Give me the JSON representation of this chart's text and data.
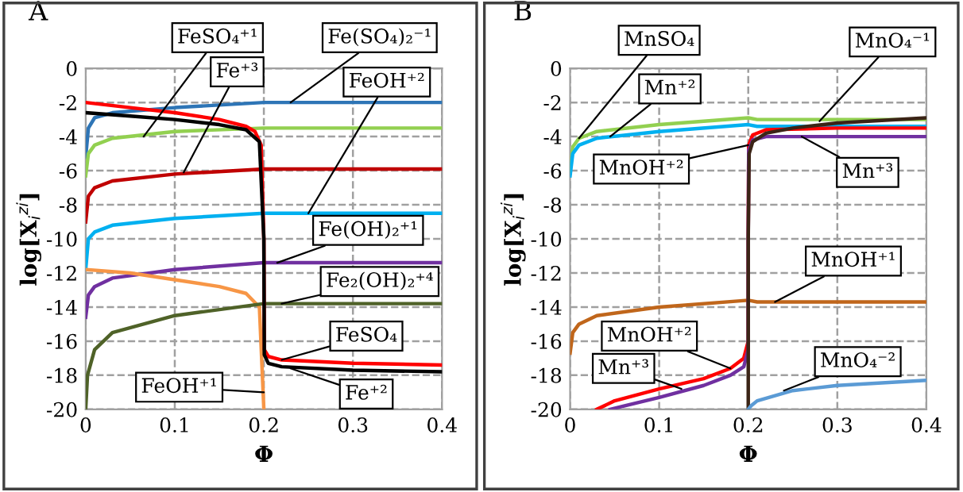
{
  "chart_data": [
    {
      "type": "line",
      "title": "A",
      "xlabel": "Φ",
      "ylabel": "log[X$_{i}$$^{zi}$]",
      "xlim": [
        0,
        0.4
      ],
      "ylim": [
        -20,
        0
      ],
      "xticks": [
        0,
        0.1,
        0.2,
        0.3,
        0.4
      ],
      "yticks": [
        -20,
        -18,
        -16,
        -14,
        -12,
        -10,
        -8,
        -6,
        -4,
        -2,
        0
      ],
      "grid": true,
      "marker": "none",
      "line_style": "solid",
      "series": [
        {
          "color": "#2e75b6",
          "x": [
            0,
            0.003,
            0.01,
            0.03,
            0.1,
            0.2,
            0.4
          ],
          "values": [
            -5.2,
            -3.5,
            -2.9,
            -2.6,
            -2.3,
            -2.0,
            -2.0
          ]
        },
        {
          "color": "#92d050",
          "x": [
            0,
            0.003,
            0.01,
            0.03,
            0.1,
            0.2,
            0.4
          ],
          "values": [
            -6.3,
            -5.0,
            -4.5,
            -4.1,
            -3.7,
            -3.5,
            -3.5
          ]
        },
        {
          "color": "#c00000",
          "x": [
            0,
            0.003,
            0.01,
            0.03,
            0.1,
            0.2,
            0.4
          ],
          "values": [
            -9.0,
            -7.5,
            -7.0,
            -6.6,
            -6.2,
            -5.9,
            -5.9
          ]
        },
        {
          "color": "#00b0f0",
          "x": [
            0,
            0.003,
            0.01,
            0.03,
            0.1,
            0.2,
            0.4
          ],
          "values": [
            -11.8,
            -10.0,
            -9.6,
            -9.2,
            -8.8,
            -8.5,
            -8.5
          ]
        },
        {
          "color": "#7030a0",
          "x": [
            0,
            0.003,
            0.01,
            0.03,
            0.1,
            0.2,
            0.4
          ],
          "values": [
            -14.6,
            -13.3,
            -12.8,
            -12.3,
            -11.8,
            -11.4,
            -11.4
          ]
        },
        {
          "color": "#f79646",
          "x": [
            0,
            0.05,
            0.1,
            0.15,
            0.18,
            0.195,
            0.2
          ],
          "values": [
            -11.8,
            -12.0,
            -12.4,
            -12.8,
            -13.2,
            -14.0,
            -20
          ]
        },
        {
          "color": "#4f6228",
          "x": [
            0,
            0.002,
            0.01,
            0.03,
            0.1,
            0.2,
            0.4
          ],
          "values": [
            -20,
            -18,
            -16.5,
            -15.5,
            -14.5,
            -13.8,
            -13.8
          ]
        },
        {
          "color": "#ff0000",
          "x": [
            0,
            0.05,
            0.1,
            0.15,
            0.18,
            0.19,
            0.197,
            0.2,
            0.2005,
            0.205,
            0.22,
            0.3,
            0.4
          ],
          "values": [
            -2.0,
            -2.3,
            -2.6,
            -3.0,
            -3.4,
            -3.7,
            -4.5,
            -10,
            -16.5,
            -16.9,
            -17.1,
            -17.3,
            -17.4
          ]
        },
        {
          "color": "#000000",
          "x": [
            0,
            0.05,
            0.1,
            0.15,
            0.18,
            0.195,
            0.2,
            0.2005,
            0.205,
            0.22,
            0.3,
            0.4
          ],
          "values": [
            -2.6,
            -2.8,
            -3.0,
            -3.3,
            -3.6,
            -4.3,
            -10,
            -16.8,
            -17.3,
            -17.5,
            -17.7,
            -17.8
          ]
        }
      ],
      "annotations": [
        {
          "text": "FeSO₄⁺¹",
          "x": 0.065,
          "y": -4.0
        },
        {
          "text": "Fe(SO₄)₂⁻¹",
          "x": 0.23,
          "y": -2.0
        },
        {
          "text": "Fe⁺³",
          "x": 0.11,
          "y": -6.1
        },
        {
          "text": "FeOH⁺²",
          "x": 0.25,
          "y": -8.5
        },
        {
          "text": "Fe(OH)₂⁺¹",
          "x": 0.215,
          "y": -11.4
        },
        {
          "text": "Fe₂(OH)₂⁺⁴",
          "x": 0.22,
          "y": -13.8
        },
        {
          "text": "FeSO₄",
          "x": 0.22,
          "y": -17.1
        },
        {
          "text": "Fe⁺²",
          "x": 0.23,
          "y": -17.6
        },
        {
          "text": "FeOH⁺¹",
          "x": 0.2,
          "y": -19.0
        }
      ]
    },
    {
      "type": "line",
      "title": "B",
      "xlabel": "Φ",
      "ylabel": "log[X$_{i}$$^{zi}$]",
      "xlim": [
        0,
        0.4
      ],
      "ylim": [
        -20,
        0
      ],
      "xticks": [
        0,
        0.1,
        0.2,
        0.3,
        0.4
      ],
      "yticks": [
        -20,
        -18,
        -16,
        -14,
        -12,
        -10,
        -8,
        -6,
        -4,
        -2,
        0
      ],
      "grid": true,
      "marker": "none",
      "line_style": "solid",
      "series": [
        {
          "color": "#92d050",
          "x": [
            0,
            0.003,
            0.01,
            0.03,
            0.1,
            0.2,
            0.21,
            0.3,
            0.4
          ],
          "values": [
            -6.0,
            -4.6,
            -4.1,
            -3.7,
            -3.3,
            -2.9,
            -3.0,
            -3.0,
            -3.0
          ]
        },
        {
          "color": "#00b0f0",
          "x": [
            0,
            0.003,
            0.01,
            0.03,
            0.1,
            0.2,
            0.21,
            0.3,
            0.4
          ],
          "values": [
            -6.3,
            -5.0,
            -4.5,
            -4.1,
            -3.7,
            -3.3,
            -3.4,
            -3.4,
            -3.4
          ]
        },
        {
          "color": "#c0661b",
          "x": [
            0,
            0.003,
            0.01,
            0.03,
            0.1,
            0.2,
            0.21,
            0.4
          ],
          "values": [
            -16.7,
            -15.5,
            -15.0,
            -14.5,
            -14.0,
            -13.6,
            -13.7,
            -13.7
          ]
        },
        {
          "color": "#ff0000",
          "x": [
            0.03,
            0.05,
            0.1,
            0.15,
            0.18,
            0.195,
            0.2,
            0.2,
            0.2005,
            0.205,
            0.22,
            0.3,
            0.4
          ],
          "values": [
            -20,
            -19.5,
            -18.8,
            -18.2,
            -17.6,
            -17.0,
            -16.0,
            -10,
            -4.5,
            -3.9,
            -3.6,
            -3.5,
            -3.5
          ]
        },
        {
          "color": "#7030a0",
          "x": [
            0.045,
            0.1,
            0.15,
            0.18,
            0.195,
            0.2,
            0.2,
            0.2005,
            0.205,
            0.22,
            0.4
          ],
          "values": [
            -20,
            -19.3,
            -18.6,
            -18.0,
            -17.5,
            -16.5,
            -10,
            -4.8,
            -4.2,
            -4.0,
            -4.0
          ]
        },
        {
          "color": "#3b2416",
          "x": [
            0.2,
            0.2,
            0.201,
            0.205,
            0.22,
            0.25,
            0.3,
            0.4
          ],
          "values": [
            -20,
            -10,
            -5.0,
            -4.3,
            -3.8,
            -3.5,
            -3.2,
            -2.9
          ]
        },
        {
          "color": "#5b9bd5",
          "x": [
            0.2,
            0.203,
            0.21,
            0.25,
            0.3,
            0.4
          ],
          "values": [
            -20,
            -19.8,
            -19.5,
            -18.9,
            -18.6,
            -18.3
          ]
        }
      ],
      "annotations": [
        {
          "text": "MnSO₄",
          "x": 0.01,
          "y": -4.1
        },
        {
          "text": "Mn⁺²",
          "x": 0.045,
          "y": -4.0
        },
        {
          "text": "MnO₄⁻¹",
          "x": 0.28,
          "y": -3.1
        },
        {
          "text": "MnOH⁺²",
          "x": 0.2,
          "y": -4.5
        },
        {
          "text": "Mn⁺³",
          "x": 0.26,
          "y": -4.0
        },
        {
          "text": "MnOH⁺¹",
          "x": 0.23,
          "y": -13.7
        },
        {
          "text": "MnOH⁺²",
          "x": 0.18,
          "y": -17.6
        },
        {
          "text": "Mn⁺³",
          "x": 0.125,
          "y": -18.8
        },
        {
          "text": "MnO₄⁻²",
          "x": 0.24,
          "y": -18.9
        }
      ]
    }
  ]
}
